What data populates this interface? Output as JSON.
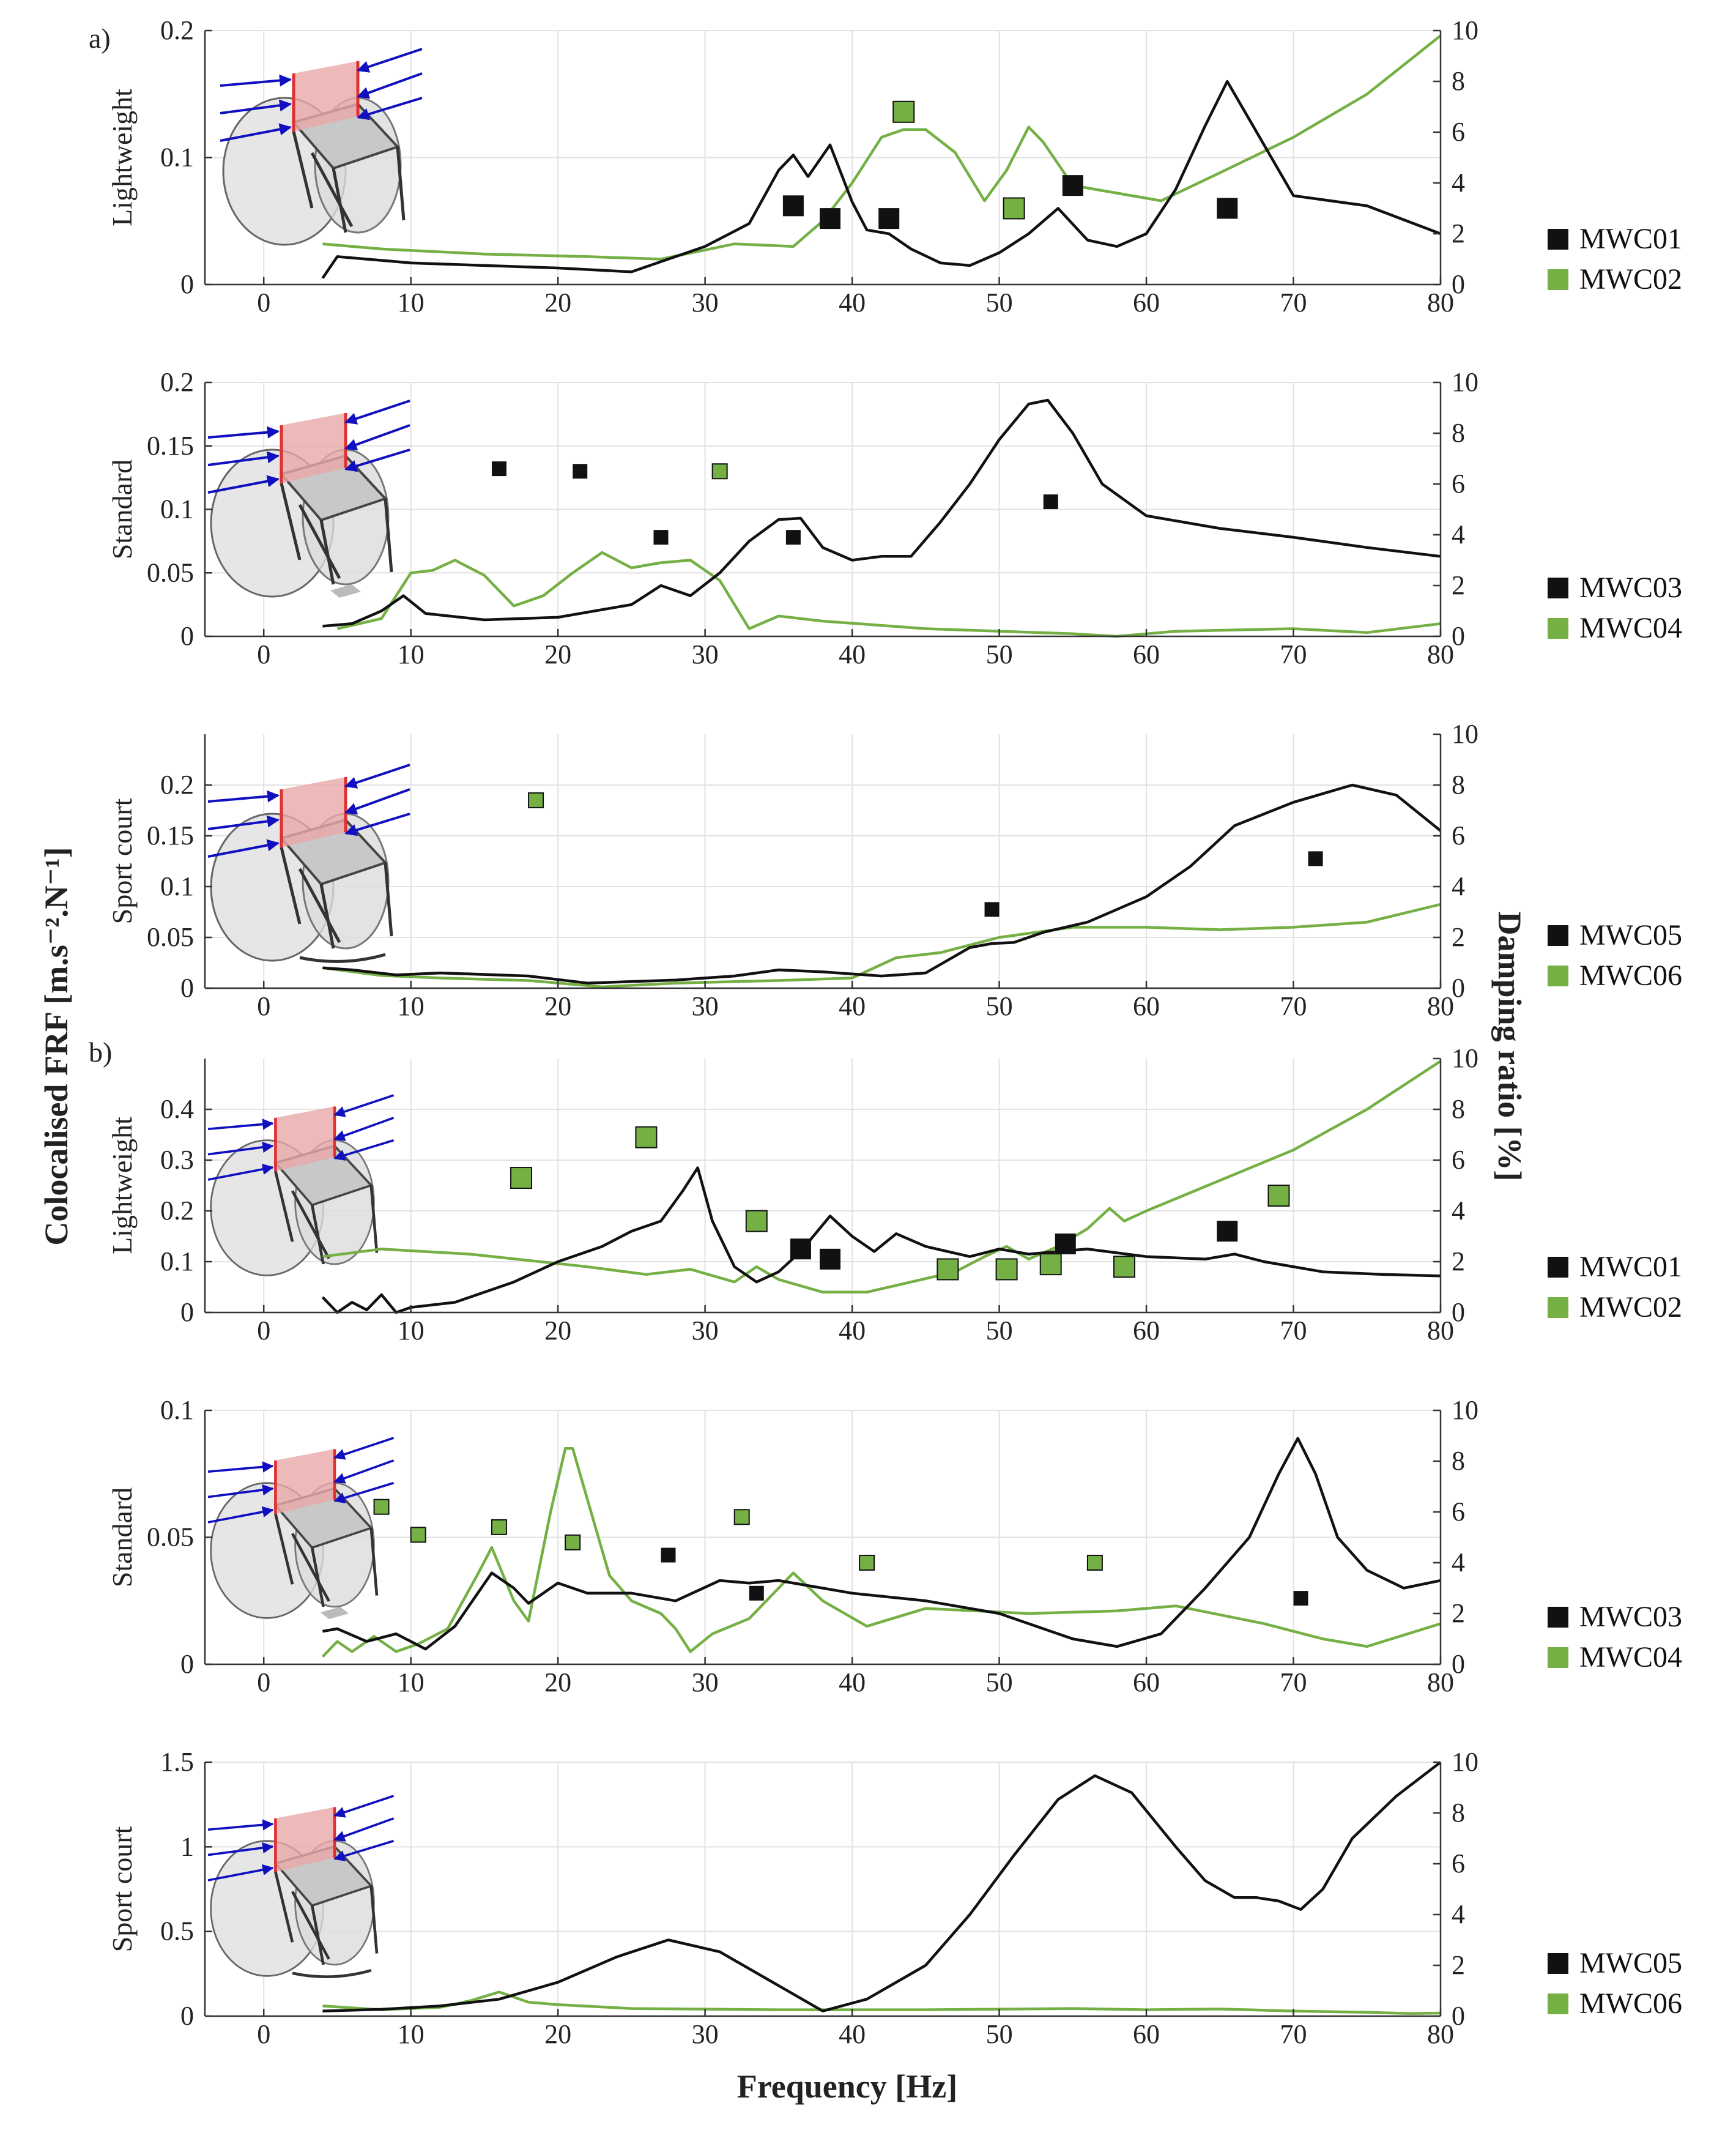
{
  "colors": {
    "black_series": "#111111",
    "green_series": "#74b044",
    "grid": "#e2e2e2",
    "arrow": "#1010c0",
    "panel": "#e8a8a8"
  },
  "labels": {
    "part_a": "a)",
    "part_b": "b)",
    "y_left_title": "Colocalised FRF [m.s⁻².N⁻¹]",
    "y_right_title": "Damping ratio [%]",
    "x_title": "Frequency [Hz]"
  },
  "chart_data": [
    {
      "type": "line",
      "row_label": "Lightweight",
      "xlim": [
        -4,
        80
      ],
      "x_ticks": [
        0,
        10,
        20,
        30,
        40,
        50,
        60,
        70,
        80
      ],
      "ylim": [
        0,
        0.2
      ],
      "y_ticks": [
        0,
        0.1,
        0.2
      ],
      "y_tick_labels": [
        "0",
        "0.1",
        "0.2"
      ],
      "y2lim": [
        0,
        10
      ],
      "y2_ticks": [
        0,
        2,
        4,
        6,
        8,
        10
      ],
      "frf": {
        "x": [
          4,
          5,
          7,
          10,
          15,
          20,
          25,
          27,
          30,
          33,
          35,
          36,
          37,
          38.5,
          40,
          41,
          42.5,
          44,
          46,
          48,
          50,
          52,
          54,
          56,
          58,
          60,
          62,
          64,
          65.5,
          67,
          70,
          75,
          80
        ],
        "y": [
          0.005,
          0.022,
          0.02,
          0.017,
          0.015,
          0.013,
          0.01,
          0.018,
          0.03,
          0.048,
          0.09,
          0.102,
          0.085,
          0.11,
          0.065,
          0.043,
          0.04,
          0.028,
          0.017,
          0.015,
          0.025,
          0.04,
          0.06,
          0.035,
          0.03,
          0.04,
          0.075,
          0.125,
          0.16,
          0.13,
          0.07,
          0.062,
          0.04
        ]
      },
      "damping": {
        "x": [
          4,
          8,
          15,
          22,
          27,
          32,
          36,
          38,
          40,
          42,
          43.5,
          45,
          47,
          49,
          50.5,
          52,
          53,
          55,
          58,
          61,
          65,
          70,
          75,
          80
        ],
        "y": [
          1.6,
          1.4,
          1.2,
          1.1,
          1.0,
          1.6,
          1.5,
          2.5,
          4.0,
          5.8,
          6.1,
          6.1,
          5.2,
          3.3,
          4.5,
          6.2,
          5.6,
          3.9,
          3.6,
          3.3,
          4.4,
          5.8,
          7.5,
          9.8
        ]
      },
      "legend": [
        "MWC01",
        "MWC02"
      ],
      "points_black": [
        {
          "x": 36,
          "y": 3.1
        },
        {
          "x": 38.5,
          "y": 2.6
        },
        {
          "x": 42.5,
          "y": 2.6
        },
        {
          "x": 55,
          "y": 3.9
        },
        {
          "x": 65.5,
          "y": 3.0
        }
      ],
      "points_green": [
        {
          "x": 43.5,
          "y": 6.8
        },
        {
          "x": 51,
          "y": 3.0
        }
      ],
      "marker_size": "large"
    },
    {
      "type": "line",
      "row_label": "Standard",
      "xlim": [
        -4,
        80
      ],
      "x_ticks": [
        0,
        10,
        20,
        30,
        40,
        50,
        60,
        70,
        80
      ],
      "ylim": [
        0,
        0.2
      ],
      "y_ticks": [
        0,
        0.05,
        0.1,
        0.15,
        0.2
      ],
      "y_tick_labels": [
        "0",
        "0.05",
        "0.1",
        "0.15",
        "0.2"
      ],
      "y2lim": [
        0,
        10
      ],
      "y2_ticks": [
        0,
        2,
        4,
        6,
        8,
        10
      ],
      "frf": {
        "x": [
          4,
          6,
          8,
          9.5,
          11,
          15,
          20,
          25,
          27,
          29,
          31,
          33,
          35,
          36.5,
          38,
          40,
          42,
          44,
          46,
          48,
          50,
          52,
          53.3,
          55,
          57,
          60,
          65,
          70,
          75,
          80
        ],
        "y": [
          0.008,
          0.01,
          0.02,
          0.032,
          0.018,
          0.013,
          0.015,
          0.025,
          0.04,
          0.032,
          0.05,
          0.075,
          0.092,
          0.093,
          0.07,
          0.06,
          0.063,
          0.063,
          0.09,
          0.12,
          0.155,
          0.183,
          0.186,
          0.16,
          0.12,
          0.095,
          0.085,
          0.078,
          0.07,
          0.063
        ]
      },
      "damping": {
        "x": [
          5,
          8,
          10,
          11.5,
          13,
          15,
          17,
          19,
          21,
          23,
          25,
          27,
          29,
          31,
          33,
          35,
          38,
          45,
          55,
          58,
          62,
          70,
          75,
          80
        ],
        "y": [
          0.3,
          0.7,
          2.5,
          2.6,
          3.0,
          2.4,
          1.2,
          1.6,
          2.5,
          3.3,
          2.7,
          2.9,
          3.0,
          2.2,
          0.3,
          0.8,
          0.6,
          0.3,
          0.1,
          0.0,
          0.2,
          0.3,
          0.15,
          0.5
        ]
      },
      "legend": [
        "MWC03",
        "MWC04"
      ],
      "points_black": [
        {
          "x": 16,
          "y": 6.6
        },
        {
          "x": 21.5,
          "y": 6.5
        },
        {
          "x": 27,
          "y": 3.9
        },
        {
          "x": 36,
          "y": 3.9
        },
        {
          "x": 53.5,
          "y": 5.3
        }
      ],
      "points_green": [
        {
          "x": 31,
          "y": 6.5
        }
      ],
      "marker_size": "small"
    },
    {
      "type": "line",
      "row_label": "Sport court",
      "xlim": [
        -4,
        80
      ],
      "x_ticks": [
        0,
        10,
        20,
        30,
        40,
        50,
        60,
        70,
        80
      ],
      "ylim": [
        0,
        0.25
      ],
      "y_ticks": [
        0,
        0.05,
        0.1,
        0.15,
        0.2
      ],
      "y_tick_labels": [
        "0",
        "0.05",
        "0.1",
        "0.15",
        "0.2"
      ],
      "y2lim": [
        0,
        10
      ],
      "y2_ticks": [
        0,
        2,
        4,
        6,
        8,
        10
      ],
      "frf": {
        "x": [
          4,
          6,
          9,
          12,
          18,
          22,
          28,
          32,
          35,
          38,
          42,
          45,
          48,
          49.5,
          51,
          53,
          56,
          60,
          63,
          66,
          70,
          74,
          77,
          80
        ],
        "y": [
          0.02,
          0.018,
          0.013,
          0.015,
          0.012,
          0.005,
          0.008,
          0.012,
          0.018,
          0.016,
          0.012,
          0.015,
          0.04,
          0.044,
          0.045,
          0.055,
          0.065,
          0.09,
          0.12,
          0.16,
          0.183,
          0.2,
          0.19,
          0.155
        ]
      },
      "damping": {
        "x": [
          4,
          8,
          12,
          18,
          23,
          28,
          35,
          40,
          43,
          46,
          50,
          55,
          60,
          65,
          70,
          75,
          80
        ],
        "y": [
          0.8,
          0.5,
          0.4,
          0.3,
          0.05,
          0.2,
          0.3,
          0.4,
          1.2,
          1.4,
          2.0,
          2.4,
          2.4,
          2.3,
          2.4,
          2.6,
          3.3
        ]
      },
      "legend": [
        "MWC05",
        "MWC06"
      ],
      "points_black": [
        {
          "x": 49.5,
          "y": 3.1
        },
        {
          "x": 71.5,
          "y": 5.1
        }
      ],
      "points_green": [
        {
          "x": 18.5,
          "y": 7.4
        }
      ],
      "marker_size": "small"
    },
    {
      "type": "line",
      "row_label": "Lightweight",
      "xlim": [
        -4,
        80
      ],
      "x_ticks": [
        0,
        10,
        20,
        30,
        40,
        50,
        60,
        70,
        80
      ],
      "ylim": [
        0,
        0.5
      ],
      "y_ticks": [
        0,
        0.1,
        0.2,
        0.3,
        0.4
      ],
      "y_tick_labels": [
        "0",
        "0.1",
        "0.2",
        "0.3",
        "0.4"
      ],
      "y2lim": [
        0,
        10
      ],
      "y2_ticks": [
        0,
        2,
        4,
        6,
        8,
        10
      ],
      "frf": {
        "x": [
          4,
          5,
          6,
          7,
          8,
          9,
          10,
          13,
          17,
          20,
          23,
          25,
          27,
          28.5,
          29.5,
          30.5,
          32,
          33.5,
          35,
          36.5,
          38.5,
          40,
          41.5,
          43,
          45,
          48,
          50,
          52,
          54,
          56,
          60,
          64,
          66,
          68,
          72,
          76,
          80
        ],
        "y": [
          0.03,
          0.0,
          0.02,
          0.005,
          0.035,
          0.0,
          0.01,
          0.02,
          0.06,
          0.1,
          0.13,
          0.16,
          0.18,
          0.24,
          0.285,
          0.18,
          0.09,
          0.06,
          0.08,
          0.12,
          0.19,
          0.15,
          0.12,
          0.155,
          0.13,
          0.11,
          0.125,
          0.115,
          0.12,
          0.125,
          0.11,
          0.105,
          0.115,
          0.1,
          0.08,
          0.075,
          0.072
        ]
      },
      "damping": {
        "x": [
          4,
          8,
          14,
          22,
          26,
          29,
          32,
          33.5,
          35,
          38,
          41,
          44,
          47,
          49,
          50.5,
          52,
          54,
          56,
          57.5,
          58.5,
          60,
          65,
          70,
          75,
          80
        ],
        "y": [
          2.2,
          2.5,
          2.3,
          1.8,
          1.5,
          1.7,
          1.2,
          1.8,
          1.3,
          0.8,
          0.8,
          1.2,
          1.6,
          2.2,
          2.6,
          2.1,
          2.6,
          3.3,
          4.1,
          3.6,
          4.0,
          5.2,
          6.4,
          8.0,
          9.9
        ]
      },
      "legend": [
        "MWC01",
        "MWC02"
      ],
      "points_black": [
        {
          "x": 36.5,
          "y": 2.5
        },
        {
          "x": 38.5,
          "y": 2.1
        },
        {
          "x": 54.5,
          "y": 2.7
        },
        {
          "x": 65.5,
          "y": 3.2
        }
      ],
      "points_green": [
        {
          "x": 17.5,
          "y": 5.3
        },
        {
          "x": 26,
          "y": 6.9
        },
        {
          "x": 33.5,
          "y": 3.6
        },
        {
          "x": 46.5,
          "y": 1.7
        },
        {
          "x": 50.5,
          "y": 1.7
        },
        {
          "x": 53.5,
          "y": 1.9
        },
        {
          "x": 58.5,
          "y": 1.8
        },
        {
          "x": 69,
          "y": 4.6
        }
      ],
      "marker_size": "large"
    },
    {
      "type": "line",
      "row_label": "Standard",
      "xlim": [
        -4,
        80
      ],
      "x_ticks": [
        0,
        10,
        20,
        30,
        40,
        50,
        60,
        70,
        80
      ],
      "ylim": [
        0,
        0.1
      ],
      "y_ticks": [
        0,
        0.05,
        0.1
      ],
      "y_tick_labels": [
        "0",
        "0.05",
        "0.1"
      ],
      "y2lim": [
        0,
        10
      ],
      "y2_ticks": [
        0,
        2,
        4,
        6,
        8,
        10
      ],
      "frf": {
        "x": [
          4,
          5,
          7,
          9,
          11,
          13,
          15.5,
          17,
          18,
          20,
          22,
          25,
          28,
          31,
          33,
          35,
          40,
          45,
          50,
          55,
          58,
          61,
          64,
          67,
          69,
          70.3,
          71.5,
          73,
          75,
          77.5,
          80
        ],
        "y": [
          0.013,
          0.014,
          0.009,
          0.012,
          0.006,
          0.015,
          0.036,
          0.03,
          0.024,
          0.032,
          0.028,
          0.028,
          0.025,
          0.033,
          0.032,
          0.033,
          0.028,
          0.025,
          0.02,
          0.01,
          0.007,
          0.012,
          0.03,
          0.05,
          0.075,
          0.089,
          0.075,
          0.05,
          0.037,
          0.03,
          0.033
        ]
      },
      "damping": {
        "x": [
          4,
          5,
          6,
          7.5,
          9,
          10.5,
          12.5,
          14.5,
          15.5,
          17,
          18,
          19.5,
          20.5,
          21,
          22,
          23.5,
          25,
          27,
          28,
          29,
          30.5,
          33,
          36,
          38,
          41,
          45,
          52,
          58,
          62,
          68,
          72,
          75,
          80
        ],
        "y": [
          0.3,
          0.9,
          0.5,
          1.1,
          0.5,
          0.8,
          1.4,
          3.5,
          4.6,
          2.5,
          1.7,
          6.0,
          8.5,
          8.5,
          6.5,
          3.5,
          2.5,
          2.0,
          1.4,
          0.5,
          1.2,
          1.8,
          3.6,
          2.5,
          1.5,
          2.2,
          2.0,
          2.1,
          2.3,
          1.6,
          1.0,
          0.7,
          1.6
        ]
      },
      "legend": [
        "MWC03",
        "MWC04"
      ],
      "points_black": [
        {
          "x": 27.5,
          "y": 4.3
        },
        {
          "x": 33.5,
          "y": 2.8
        },
        {
          "x": 70.5,
          "y": 2.6
        }
      ],
      "points_green": [
        {
          "x": 8,
          "y": 6.2
        },
        {
          "x": 10.5,
          "y": 5.1
        },
        {
          "x": 16,
          "y": 5.4
        },
        {
          "x": 21,
          "y": 4.8
        },
        {
          "x": 32.5,
          "y": 5.8
        },
        {
          "x": 41,
          "y": 4.0
        },
        {
          "x": 56.5,
          "y": 4.0
        }
      ],
      "marker_size": "small"
    },
    {
      "type": "line",
      "row_label": "Sport court",
      "xlim": [
        -4,
        80
      ],
      "x_ticks": [
        0,
        10,
        20,
        30,
        40,
        50,
        60,
        70,
        80
      ],
      "ylim": [
        0,
        1.5
      ],
      "y_ticks": [
        0,
        0.5,
        1,
        1.5
      ],
      "y_tick_labels": [
        "0",
        "0.5",
        "1",
        "1.5"
      ],
      "y2lim": [
        0,
        10
      ],
      "y2_ticks": [
        0,
        2,
        4,
        6,
        8,
        10
      ],
      "frf": {
        "x": [
          4,
          8,
          12,
          16,
          20,
          24,
          27.5,
          31,
          35,
          38,
          41,
          45,
          48,
          51,
          54,
          56.5,
          59,
          62,
          64,
          66,
          67.5,
          69,
          70.5,
          72,
          74,
          77,
          80
        ],
        "y": [
          0.03,
          0.04,
          0.06,
          0.1,
          0.2,
          0.35,
          0.45,
          0.38,
          0.18,
          0.03,
          0.1,
          0.3,
          0.6,
          0.95,
          1.28,
          1.42,
          1.32,
          1.0,
          0.8,
          0.7,
          0.7,
          0.68,
          0.63,
          0.75,
          1.05,
          1.3,
          1.5
        ]
      },
      "damping": {
        "x": [
          4,
          8,
          12,
          14,
          16,
          18,
          20,
          25,
          35,
          45,
          55,
          60,
          65,
          70,
          75,
          78,
          80
        ],
        "y": [
          0.4,
          0.25,
          0.35,
          0.6,
          0.95,
          0.55,
          0.45,
          0.3,
          0.25,
          0.25,
          0.3,
          0.25,
          0.28,
          0.2,
          0.15,
          0.1,
          0.12
        ]
      },
      "legend": [
        "MWC05",
        "MWC06"
      ],
      "points_black": [],
      "points_green": [],
      "marker_size": "small"
    }
  ]
}
